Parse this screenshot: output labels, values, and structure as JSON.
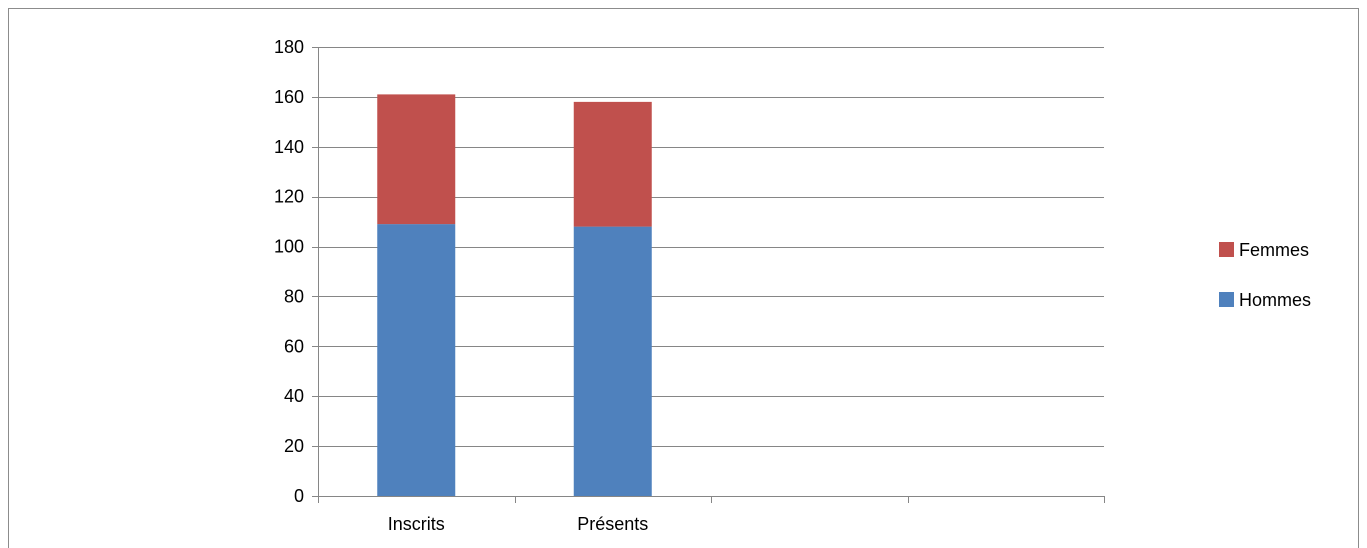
{
  "chart_data": {
    "type": "bar",
    "stacked": true,
    "categories": [
      "Inscrits",
      "Présents",
      "",
      ""
    ],
    "series": [
      {
        "name": "Hommes",
        "values": [
          109,
          108,
          null,
          null
        ],
        "color": "#4f81bd"
      },
      {
        "name": "Femmes",
        "values": [
          52,
          50,
          null,
          null
        ],
        "color": "#c0504d"
      }
    ],
    "title": "",
    "xlabel": "",
    "ylabel": "",
    "ylim": [
      0,
      180
    ],
    "yticks": [
      0,
      20,
      40,
      60,
      80,
      100,
      120,
      140,
      160,
      180
    ],
    "grid": true,
    "legend_position": "right",
    "legend_order": [
      "Femmes",
      "Hommes"
    ],
    "gridline_color": "#868686"
  }
}
